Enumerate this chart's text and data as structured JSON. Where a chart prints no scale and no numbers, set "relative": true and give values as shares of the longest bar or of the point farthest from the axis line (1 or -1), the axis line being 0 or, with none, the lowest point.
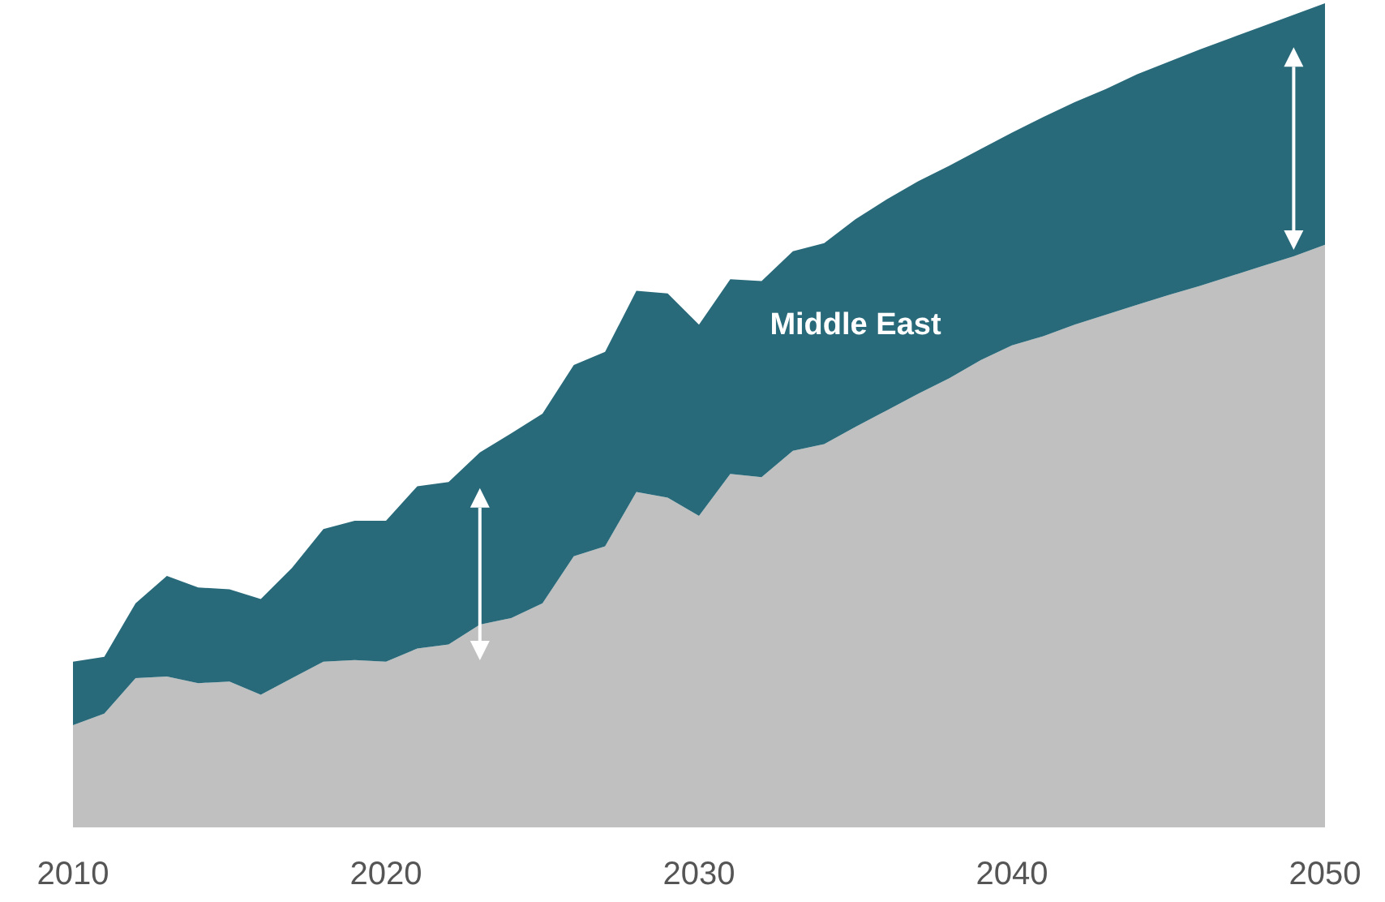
{
  "chart_data": {
    "type": "area",
    "stacked": true,
    "relative": true,
    "x": [
      2010,
      2011,
      2012,
      2013,
      2014,
      2015,
      2016,
      2017,
      2018,
      2019,
      2020,
      2021,
      2022,
      2023,
      2024,
      2025,
      2026,
      2027,
      2028,
      2029,
      2030,
      2031,
      2032,
      2033,
      2034,
      2035,
      2036,
      2037,
      2038,
      2039,
      2040,
      2041,
      2042,
      2043,
      2044,
      2045,
      2046,
      2047,
      2048,
      2049,
      2050
    ],
    "xlim": [
      2010,
      2050
    ],
    "xticks": [
      2010,
      2020,
      2030,
      2040,
      2050
    ],
    "series": [
      {
        "color": "#c0c0c0",
        "values": [
          0.124,
          0.138,
          0.181,
          0.183,
          0.175,
          0.177,
          0.161,
          0.181,
          0.201,
          0.203,
          0.201,
          0.217,
          0.222,
          0.246,
          0.254,
          0.272,
          0.329,
          0.341,
          0.407,
          0.4,
          0.378,
          0.429,
          0.425,
          0.457,
          0.465,
          0.486,
          0.506,
          0.526,
          0.545,
          0.567,
          0.585,
          0.596,
          0.61,
          0.622,
          0.634,
          0.646,
          0.657,
          0.669,
          0.681,
          0.693,
          0.707
        ]
      },
      {
        "name": "Middle East",
        "color": "#286a7a",
        "values": [
          0.077,
          0.069,
          0.091,
          0.122,
          0.116,
          0.112,
          0.116,
          0.134,
          0.161,
          0.169,
          0.171,
          0.197,
          0.197,
          0.209,
          0.224,
          0.23,
          0.232,
          0.236,
          0.244,
          0.248,
          0.232,
          0.236,
          0.238,
          0.242,
          0.244,
          0.252,
          0.256,
          0.258,
          0.258,
          0.256,
          0.258,
          0.266,
          0.27,
          0.274,
          0.28,
          0.283,
          0.287,
          0.289,
          0.291,
          0.293,
          0.293
        ]
      }
    ]
  }
}
